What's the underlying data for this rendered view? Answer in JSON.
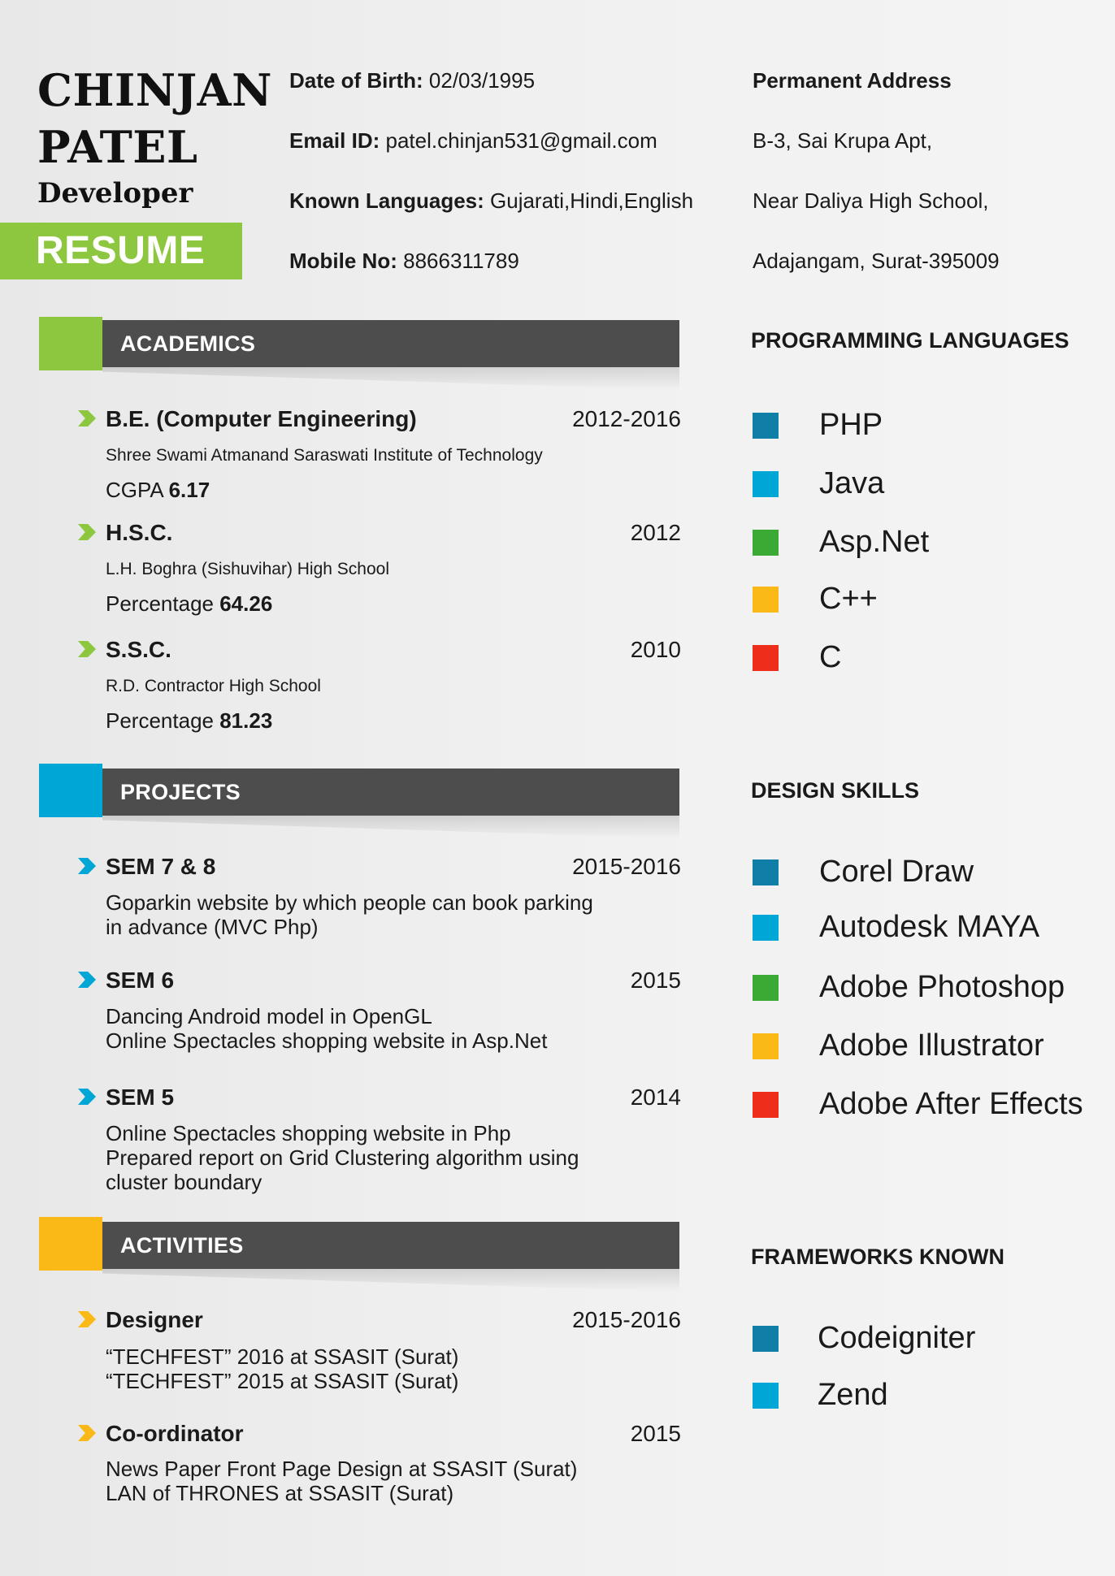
{
  "header": {
    "first_name": "CHINJAN",
    "last_name": "PATEL",
    "role": "Developer",
    "badge": "RESUME"
  },
  "personal": {
    "dob_label": "Date of Birth:",
    "dob_value": "02/03/1995",
    "email_label": "Email ID:",
    "email_value": "patel.chinjan531@gmail.com",
    "languages_label": "Known Languages:",
    "languages_value": "Gujarati,Hindi,English",
    "mobile_label": "Mobile No:",
    "mobile_value": "8866311789"
  },
  "address": {
    "title": "Permanent Address",
    "line1": "B-3, Sai Krupa Apt,",
    "line2": "Near Daliya High School,",
    "line3": "Adajangam, Surat-395009"
  },
  "colors": {
    "green": "#8dc63f",
    "blue": "#00a6d6",
    "yellow": "#fbb917",
    "dark_bar": "#4d4d4d",
    "sq_teal": "#0f7fa8",
    "sq_cyan": "#00a6d6",
    "sq_green": "#3aaa35",
    "sq_orange": "#fbb917",
    "sq_red": "#ee2d1b"
  },
  "academics": {
    "title": "ACADEMICS",
    "items": [
      {
        "title": "B.E. (Computer Engineering)",
        "year": "2012-2016",
        "school": "Shree Swami Atmanand Saraswati Institute of Technology",
        "score_label": "CGPA",
        "score": "6.17"
      },
      {
        "title": "H.S.C.",
        "year": "2012",
        "school": "L.H. Boghra (Sishuvihar) High School",
        "score_label": "Percentage",
        "score": "64.26"
      },
      {
        "title": "S.S.C.",
        "year": "2010",
        "school": "R.D. Contractor High School",
        "score_label": "Percentage",
        "score": "81.23"
      }
    ]
  },
  "projects": {
    "title": "PROJECTS",
    "items": [
      {
        "title": "SEM 7 & 8",
        "year": "2015-2016",
        "lines": [
          "Goparkin website by which people can book parking",
          "in advance (MVC Php)"
        ]
      },
      {
        "title": "SEM 6",
        "year": "2015",
        "lines": [
          "Dancing Android model in OpenGL",
          "Online Spectacles shopping website in Asp.Net"
        ]
      },
      {
        "title": "SEM 5",
        "year": "2014",
        "lines": [
          "Online Spectacles shopping website in Php",
          "Prepared report on Grid Clustering algorithm using",
          "cluster boundary"
        ]
      }
    ]
  },
  "activities": {
    "title": "ACTIVITIES",
    "items": [
      {
        "title": "Designer",
        "year": "2015-2016",
        "lines": [
          "“TECHFEST” 2016 at SSASIT (Surat)",
          "“TECHFEST” 2015 at SSASIT (Surat)"
        ]
      },
      {
        "title": "Co-ordinator",
        "year": "2015",
        "lines": [
          "News Paper Front Page Design at SSASIT (Surat)",
          "LAN of THRONES at SSASIT (Surat)"
        ]
      }
    ]
  },
  "programming": {
    "title": "PROGRAMMING LANGUAGES",
    "items": [
      "PHP",
      "Java",
      "Asp.Net",
      "C++",
      "C"
    ]
  },
  "design": {
    "title": "DESIGN SKILLS",
    "items": [
      "Corel Draw",
      "Autodesk MAYA",
      "Adobe Photoshop",
      "Adobe Illustrator",
      "Adobe After Effects"
    ]
  },
  "frameworks": {
    "title": "FRAMEWORKS KNOWN",
    "items": [
      "Codeigniter",
      "Zend"
    ]
  }
}
